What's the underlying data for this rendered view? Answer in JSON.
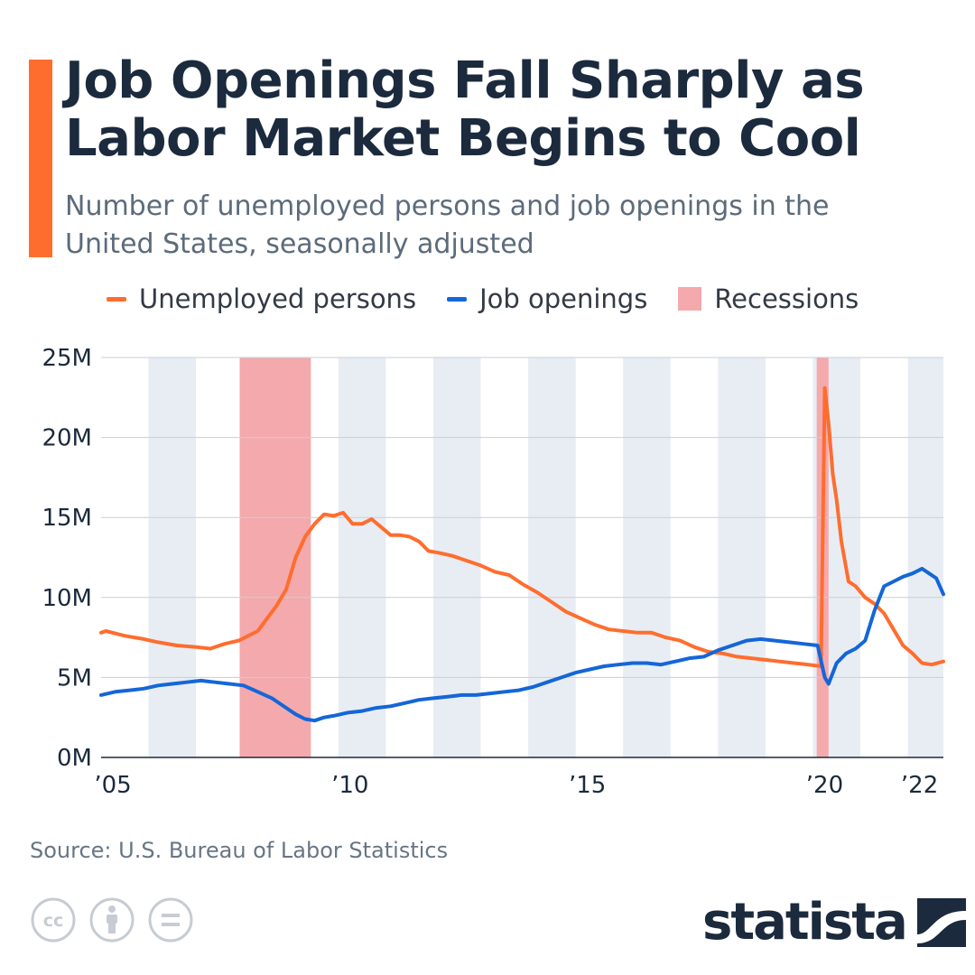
{
  "header": {
    "title": "Job Openings Fall Sharply as Labor Market Begins to Cool",
    "subtitle": "Number of unemployed persons and job openings in the United States, seasonally adjusted"
  },
  "legend": {
    "unemployed": "Unemployed persons",
    "openings": "Job openings",
    "recessions": "Recessions"
  },
  "colors": {
    "unemployed": "#ff6d2e",
    "openings": "#1466d8",
    "recession": "#f4a9ad",
    "band": "#e8edf3",
    "accent": "#ff6d2e",
    "title": "#1b2a3d"
  },
  "footer": {
    "source": "Source: U.S. Bureau of Labor Statistics",
    "logo": "statista",
    "license_icons": [
      "cc-icon",
      "attribution-icon",
      "no-derivatives-icon"
    ]
  },
  "chart_data": {
    "type": "line",
    "title": "Job Openings Fall Sharply as Labor Market Begins to Cool",
    "xlim": [
      2005,
      2022.75
    ],
    "ylim": [
      0,
      25
    ],
    "y_unit": "millions",
    "y_ticks": [
      {
        "value": 0,
        "label": "0M"
      },
      {
        "value": 5,
        "label": "5M"
      },
      {
        "value": 10,
        "label": "10M"
      },
      {
        "value": 15,
        "label": "15M"
      },
      {
        "value": 20,
        "label": "20M"
      },
      {
        "value": 25,
        "label": "25M"
      }
    ],
    "x_ticks": [
      {
        "value": 2005,
        "label": "’05"
      },
      {
        "value": 2010,
        "label": "’10"
      },
      {
        "value": 2015,
        "label": "’15"
      },
      {
        "value": 2020,
        "label": "’20"
      },
      {
        "value": 2022,
        "label": "’22"
      }
    ],
    "alternating_year_bands": [
      2006,
      2008,
      2010,
      2012,
      2014,
      2016,
      2018,
      2020,
      2022
    ],
    "recessions": [
      {
        "start": 2007.92,
        "end": 2009.42
      },
      {
        "start": 2020.08,
        "end": 2020.33
      }
    ],
    "series": [
      {
        "name": "Unemployed persons",
        "color": "#ff6d2e",
        "x": [
          2005.0,
          2005.1,
          2005.5,
          2005.9,
          2006.2,
          2006.6,
          2007.0,
          2007.3,
          2007.6,
          2007.9,
          2008.1,
          2008.3,
          2008.5,
          2008.7,
          2008.9,
          2009.1,
          2009.3,
          2009.5,
          2009.7,
          2009.9,
          2010.1,
          2010.3,
          2010.5,
          2010.7,
          2010.9,
          2011.1,
          2011.3,
          2011.5,
          2011.7,
          2011.9,
          2012.1,
          2012.4,
          2012.7,
          2013.0,
          2013.3,
          2013.6,
          2013.9,
          2014.2,
          2014.5,
          2014.8,
          2015.1,
          2015.4,
          2015.7,
          2016.0,
          2016.3,
          2016.6,
          2016.9,
          2017.2,
          2017.5,
          2017.8,
          2018.1,
          2018.4,
          2018.7,
          2019.0,
          2019.3,
          2019.6,
          2019.9,
          2020.17,
          2020.25,
          2020.33,
          2020.42,
          2020.5,
          2020.6,
          2020.75,
          2020.9,
          2021.1,
          2021.3,
          2021.5,
          2021.7,
          2021.9,
          2022.1,
          2022.3,
          2022.5,
          2022.75
        ],
        "values": [
          7.8,
          7.9,
          7.6,
          7.4,
          7.2,
          7.0,
          6.9,
          6.8,
          7.1,
          7.3,
          7.6,
          7.9,
          8.7,
          9.5,
          10.5,
          12.5,
          13.8,
          14.6,
          15.2,
          15.1,
          15.3,
          14.6,
          14.6,
          14.9,
          14.4,
          13.9,
          13.9,
          13.8,
          13.5,
          12.9,
          12.8,
          12.6,
          12.3,
          12.0,
          11.6,
          11.4,
          10.8,
          10.3,
          9.7,
          9.1,
          8.7,
          8.3,
          8.0,
          7.9,
          7.8,
          7.8,
          7.5,
          7.3,
          6.9,
          6.6,
          6.5,
          6.3,
          6.2,
          6.1,
          6.0,
          5.9,
          5.8,
          5.7,
          23.1,
          20.9,
          17.7,
          16.1,
          13.5,
          11.0,
          10.7,
          10.0,
          9.6,
          9.0,
          8.0,
          7.0,
          6.5,
          5.9,
          5.8,
          6.0
        ]
      },
      {
        "name": "Job openings",
        "color": "#1466d8",
        "x": [
          2005.0,
          2005.3,
          2005.6,
          2005.9,
          2006.2,
          2006.5,
          2006.8,
          2007.1,
          2007.4,
          2007.7,
          2008.0,
          2008.3,
          2008.6,
          2008.9,
          2009.1,
          2009.3,
          2009.5,
          2009.7,
          2009.9,
          2010.2,
          2010.5,
          2010.8,
          2011.1,
          2011.4,
          2011.7,
          2012.0,
          2012.3,
          2012.6,
          2012.9,
          2013.2,
          2013.5,
          2013.8,
          2014.1,
          2014.4,
          2014.7,
          2015.0,
          2015.3,
          2015.6,
          2015.9,
          2016.2,
          2016.5,
          2016.8,
          2017.1,
          2017.4,
          2017.7,
          2018.0,
          2018.3,
          2018.6,
          2018.9,
          2019.2,
          2019.5,
          2019.8,
          2020.1,
          2020.25,
          2020.33,
          2020.5,
          2020.7,
          2020.9,
          2021.1,
          2021.3,
          2021.5,
          2021.7,
          2021.9,
          2022.1,
          2022.3,
          2022.45,
          2022.6,
          2022.75
        ],
        "values": [
          3.9,
          4.1,
          4.2,
          4.3,
          4.5,
          4.6,
          4.7,
          4.8,
          4.7,
          4.6,
          4.5,
          4.1,
          3.7,
          3.1,
          2.7,
          2.4,
          2.3,
          2.5,
          2.6,
          2.8,
          2.9,
          3.1,
          3.2,
          3.4,
          3.6,
          3.7,
          3.8,
          3.9,
          3.9,
          4.0,
          4.1,
          4.2,
          4.4,
          4.7,
          5.0,
          5.3,
          5.5,
          5.7,
          5.8,
          5.9,
          5.9,
          5.8,
          6.0,
          6.2,
          6.3,
          6.7,
          7.0,
          7.3,
          7.4,
          7.3,
          7.2,
          7.1,
          7.0,
          5.0,
          4.6,
          5.9,
          6.5,
          6.8,
          7.3,
          9.2,
          10.7,
          11.0,
          11.3,
          11.5,
          11.8,
          11.5,
          11.2,
          10.2
        ]
      }
    ]
  }
}
